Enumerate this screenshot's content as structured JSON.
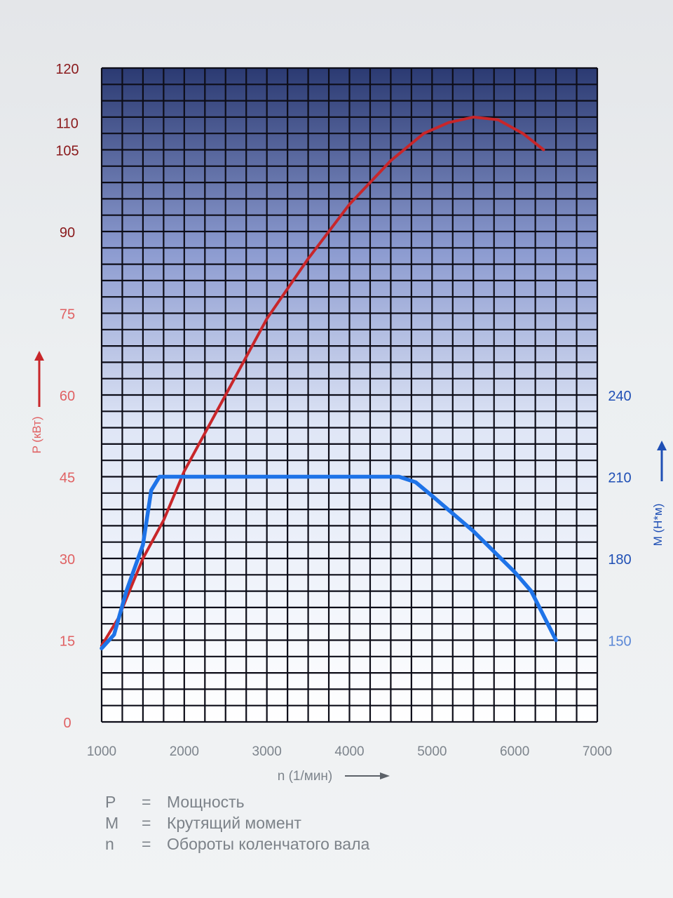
{
  "chart_data": {
    "type": "line",
    "x": {
      "label": "n (1/мин)",
      "ticks": [
        1000,
        2000,
        3000,
        4000,
        5000,
        6000,
        7000
      ],
      "range": [
        1000,
        7000
      ]
    },
    "y_left": {
      "label": "P (кВт)",
      "ticks": [
        0,
        15,
        30,
        45,
        60,
        75,
        90,
        105,
        110,
        120
      ],
      "range": [
        0,
        120
      ],
      "color": "#e0585a"
    },
    "y_right": {
      "label": "M (Н*м)",
      "ticks": [
        150,
        180,
        210,
        240
      ],
      "color": "#1f5fc4"
    },
    "grid": true,
    "series": [
      {
        "name": "P",
        "axis": "left",
        "color": "#c8262a",
        "points": [
          [
            1000,
            14
          ],
          [
            1200,
            19
          ],
          [
            1500,
            30
          ],
          [
            1750,
            37
          ],
          [
            2000,
            46
          ],
          [
            2500,
            60
          ],
          [
            3000,
            74
          ],
          [
            3500,
            85
          ],
          [
            4000,
            95
          ],
          [
            4500,
            103
          ],
          [
            4900,
            108
          ],
          [
            5200,
            110
          ],
          [
            5500,
            111
          ],
          [
            5800,
            110.5
          ],
          [
            6100,
            108
          ],
          [
            6350,
            105
          ]
        ]
      },
      {
        "name": "M",
        "axis": "right",
        "color": "#1e73e8",
        "points": [
          [
            1000,
            147
          ],
          [
            1150,
            152
          ],
          [
            1300,
            168
          ],
          [
            1500,
            185
          ],
          [
            1600,
            205
          ],
          [
            1700,
            210
          ],
          [
            1800,
            210
          ],
          [
            2500,
            210
          ],
          [
            3500,
            210
          ],
          [
            4600,
            210
          ],
          [
            4800,
            208
          ],
          [
            5000,
            203
          ],
          [
            5500,
            190
          ],
          [
            6000,
            175
          ],
          [
            6200,
            168
          ],
          [
            6500,
            150
          ]
        ]
      }
    ]
  },
  "legend": [
    {
      "symbol": "P",
      "eq": "=",
      "text": "Мощность"
    },
    {
      "symbol": "M",
      "eq": "=",
      "text": "Крутящий момент"
    },
    {
      "symbol": "n",
      "eq": "=",
      "text": "Обороты коленчатого вала"
    }
  ]
}
